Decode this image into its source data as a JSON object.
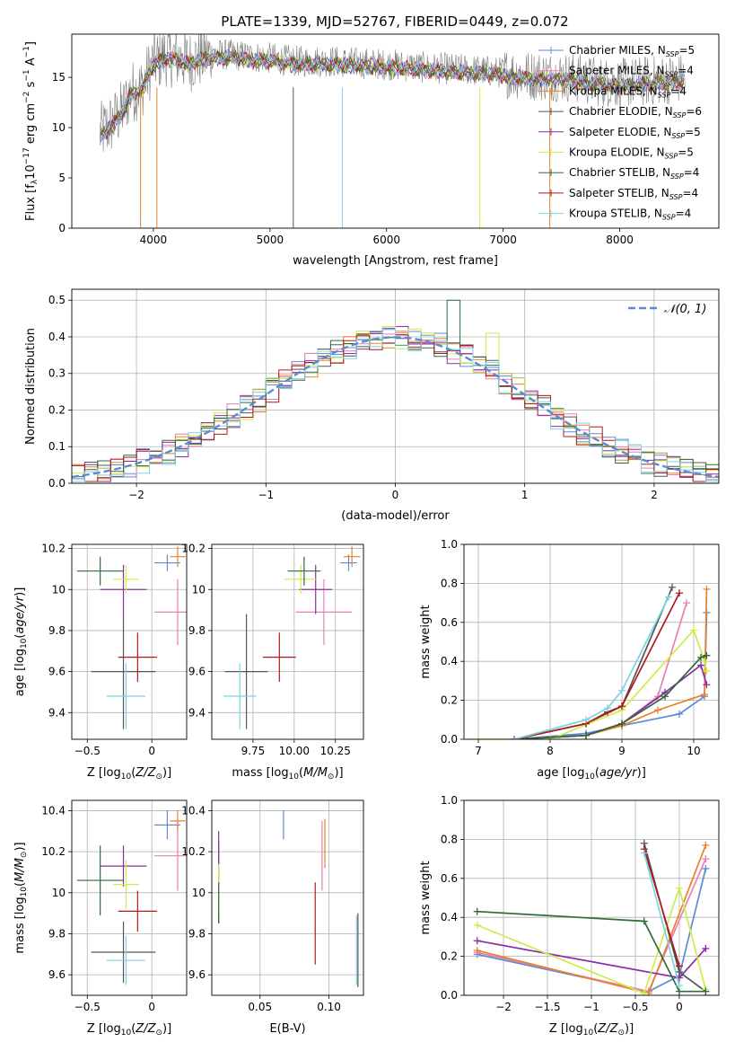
{
  "title": "PLATE=1339, MJD=52767, FIBERID=0449, z=0.072",
  "colors": {
    "cmiles": "#5b8bd6",
    "smiles": "#ea7fb2",
    "kmiles": "#e6822a",
    "celodie": "#555555",
    "selodie": "#8a2ba8",
    "kelodie": "#cfec4a",
    "cstelib": "#2f6b3a",
    "sstelib": "#b0191d",
    "kstelib": "#7ed3e0",
    "grey": "#808080"
  },
  "legend": {
    "spectrum": [
      {
        "key": "cmiles",
        "label": "Chabrier MILES, N_SSP=5"
      },
      {
        "key": "smiles",
        "label": "Salpeter MILES, N_SSP=4"
      },
      {
        "key": "kmiles",
        "label": "Kroupa MILES, N_SSP=4"
      },
      {
        "key": "celodie",
        "label": "Chabrier ELODIE, N_SSP=6"
      },
      {
        "key": "selodie",
        "label": "Salpeter ELODIE, N_SSP=5"
      },
      {
        "key": "kelodie",
        "label": "Kroupa ELODIE, N_SSP=5"
      },
      {
        "key": "cstelib",
        "label": "Chabrier STELIB, N_SSP=4"
      },
      {
        "key": "sstelib",
        "label": "Salpeter STELIB, N_SSP=4"
      },
      {
        "key": "kstelib",
        "label": "Kroupa STELIB, N_SSP=4"
      }
    ],
    "normal": "𝒩(0, 1)"
  },
  "chart_data": [
    {
      "id": "spectrum",
      "type": "line",
      "xlabel": "wavelength [Angstrom, rest frame]",
      "ylabel": "Flux [f_λ 10^-17 erg cm^-2 s^-1 A^-1]",
      "xlim": [
        3300,
        8850
      ],
      "ylim": [
        0,
        19.3
      ],
      "xticks": [
        4000,
        5000,
        6000,
        7000,
        8000
      ],
      "yticks": [
        0,
        5,
        10,
        15
      ],
      "grid": false,
      "legend_position": "right",
      "model_shape": {
        "x": [
          3550,
          3650,
          3750,
          3800,
          3900,
          4000,
          4100,
          4200,
          4300,
          4400,
          4500,
          4700,
          5000,
          5200,
          5500,
          5800,
          6000,
          6300,
          6600,
          6900,
          7200,
          7500,
          7800,
          8000,
          8300,
          8550
        ],
        "y": [
          9.5,
          10.5,
          12.0,
          13.5,
          14.0,
          16.5,
          17.2,
          17.0,
          16.6,
          17.0,
          17.3,
          17.2,
          16.9,
          16.6,
          16.6,
          16.4,
          16.3,
          16.0,
          15.8,
          15.6,
          15.2,
          15.1,
          14.6,
          14.4,
          14.7,
          14.9
        ]
      }
    },
    {
      "id": "residuals",
      "type": "line",
      "xlabel": "(data-model)/error",
      "ylabel": "Normed distribution",
      "xlim": [
        -2.5,
        2.5
      ],
      "ylim": [
        0,
        0.53
      ],
      "xticks": [
        -2,
        -1,
        0,
        1,
        2
      ],
      "yticks": [
        0.0,
        0.1,
        0.2,
        0.3,
        0.4,
        0.5
      ],
      "grid": true,
      "legend_position": "top-right",
      "histogram_spike": {
        "x": 0.45,
        "value": 0.5
      }
    },
    {
      "id": "z-age",
      "type": "scatter",
      "xlabel": "Z [log10(Z/Z_sun)]",
      "ylabel": "age [log10(age/yr)]",
      "xlim": [
        -0.62,
        0.27
      ],
      "ylim": [
        9.27,
        10.22
      ],
      "xticks": [
        -0.5,
        0.0
      ],
      "yticks": [
        9.4,
        9.6,
        9.8,
        10.0,
        10.2
      ],
      "grid": true,
      "points": [
        {
          "key": "cmiles",
          "x": 0.12,
          "y": 10.13,
          "xerr": 0.1,
          "yerr": 0.04
        },
        {
          "key": "smiles",
          "x": 0.2,
          "y": 9.89,
          "xerr": 0.18,
          "yerr": 0.16
        },
        {
          "key": "kmiles",
          "x": 0.2,
          "y": 10.16,
          "xerr": 0.06,
          "yerr": 0.05
        },
        {
          "key": "celodie",
          "x": -0.22,
          "y": 9.6,
          "xerr": 0.25,
          "yerr": 0.28
        },
        {
          "key": "selodie",
          "x": -0.22,
          "y": 10.0,
          "xerr": 0.18,
          "yerr": 0.12
        },
        {
          "key": "kelodie",
          "x": -0.2,
          "y": 10.05,
          "xerr": 0.1,
          "yerr": 0.07
        },
        {
          "key": "cstelib",
          "x": -0.4,
          "y": 10.09,
          "xerr": 0.18,
          "yerr": 0.07
        },
        {
          "key": "sstelib",
          "x": -0.11,
          "y": 9.67,
          "xerr": 0.15,
          "yerr": 0.12
        },
        {
          "key": "kstelib",
          "x": -0.2,
          "y": 9.48,
          "xerr": 0.15,
          "yerr": 0.16
        }
      ]
    },
    {
      "id": "mass-age",
      "type": "scatter",
      "xlabel": "mass [log10(M/M_sun)]",
      "ylabel": "",
      "xlim": [
        9.5,
        10.42
      ],
      "ylim": [
        9.27,
        10.22
      ],
      "xticks": [
        9.75,
        10.0,
        10.25
      ],
      "xticklabels": [
        "9.75",
        "10.00",
        "10.25"
      ],
      "yticks": [
        9.4,
        9.6,
        9.8,
        10.0,
        10.2
      ],
      "grid": true,
      "points": [
        {
          "key": "cmiles",
          "x": 10.33,
          "y": 10.13,
          "xerr": 0.05,
          "yerr": 0.04
        },
        {
          "key": "smiles",
          "x": 10.18,
          "y": 9.89,
          "xerr": 0.17,
          "yerr": 0.16
        },
        {
          "key": "kmiles",
          "x": 10.35,
          "y": 10.16,
          "xerr": 0.05,
          "yerr": 0.05
        },
        {
          "key": "celodie",
          "x": 9.71,
          "y": 9.6,
          "xerr": 0.13,
          "yerr": 0.28
        },
        {
          "key": "selodie",
          "x": 10.13,
          "y": 10.0,
          "xerr": 0.1,
          "yerr": 0.12
        },
        {
          "key": "kelodie",
          "x": 10.04,
          "y": 10.05,
          "xerr": 0.1,
          "yerr": 0.07
        },
        {
          "key": "cstelib",
          "x": 10.06,
          "y": 10.09,
          "xerr": 0.1,
          "yerr": 0.07
        },
        {
          "key": "sstelib",
          "x": 9.91,
          "y": 9.67,
          "xerr": 0.1,
          "yerr": 0.12
        },
        {
          "key": "kstelib",
          "x": 9.67,
          "y": 9.48,
          "xerr": 0.1,
          "yerr": 0.16
        }
      ]
    },
    {
      "id": "age-weight",
      "type": "line",
      "xlabel": "age [log10(age/yr)]",
      "ylabel": "mass weight",
      "xlim": [
        6.8,
        10.35
      ],
      "ylim": [
        0,
        1.0
      ],
      "xticks": [
        7,
        8,
        9,
        10
      ],
      "yticks": [
        0.0,
        0.2,
        0.4,
        0.6,
        0.8,
        1.0
      ],
      "grid": true,
      "series": [
        {
          "key": "cmiles",
          "x": [
            7.5,
            8.5,
            9.0,
            9.8,
            10.15,
            10.18
          ],
          "y": [
            0.0,
            0.03,
            0.07,
            0.13,
            0.22,
            0.65
          ]
        },
        {
          "key": "smiles",
          "x": [
            7.5,
            8.5,
            9.0,
            9.5,
            9.9
          ],
          "y": [
            0.0,
            0.02,
            0.08,
            0.22,
            0.7
          ]
        },
        {
          "key": "kmiles",
          "x": [
            7.5,
            8.5,
            9.0,
            9.5,
            10.15,
            10.18
          ],
          "y": [
            0.0,
            0.02,
            0.07,
            0.15,
            0.23,
            0.77
          ]
        },
        {
          "key": "celodie",
          "x": [
            7.5,
            8.5,
            9.0,
            9.7
          ],
          "y": [
            0.0,
            0.08,
            0.17,
            0.78
          ]
        },
        {
          "key": "selodie",
          "x": [
            7.5,
            8.5,
            9.0,
            9.6,
            10.1,
            10.18
          ],
          "y": [
            0.0,
            0.02,
            0.08,
            0.24,
            0.38,
            0.28
          ]
        },
        {
          "key": "kelodie",
          "x": [
            7.0,
            8.0,
            9.0,
            10.0,
            10.15,
            10.18
          ],
          "y": [
            0.0,
            0.0,
            0.15,
            0.56,
            0.4,
            0.35
          ]
        },
        {
          "key": "cstelib",
          "x": [
            7.5,
            8.5,
            9.0,
            9.6,
            10.1,
            10.18
          ],
          "y": [
            0.0,
            0.02,
            0.08,
            0.22,
            0.42,
            0.43
          ]
        },
        {
          "key": "sstelib",
          "x": [
            7.5,
            8.5,
            8.8,
            9.0,
            9.8
          ],
          "y": [
            0.0,
            0.08,
            0.14,
            0.17,
            0.75
          ]
        },
        {
          "key": "kstelib",
          "x": [
            7.5,
            8.5,
            8.8,
            9.0,
            9.65
          ],
          "y": [
            0.0,
            0.1,
            0.16,
            0.25,
            0.73
          ]
        }
      ]
    },
    {
      "id": "z-mass",
      "type": "scatter",
      "xlabel": "Z [log10(Z/Z_sun)]",
      "ylabel": "mass [log10(M/M_sun)]",
      "xlim": [
        -0.62,
        0.27
      ],
      "ylim": [
        9.5,
        10.45
      ],
      "xticks": [
        -0.5,
        0.0
      ],
      "yticks": [
        9.6,
        9.8,
        10.0,
        10.2,
        10.4
      ],
      "grid": true,
      "points": [
        {
          "key": "cmiles",
          "x": 0.12,
          "y": 10.33,
          "xerr": 0.1,
          "yerr": 0.07
        },
        {
          "key": "smiles",
          "x": 0.2,
          "y": 10.18,
          "xerr": 0.18,
          "yerr": 0.17
        },
        {
          "key": "kmiles",
          "x": 0.2,
          "y": 10.35,
          "xerr": 0.06,
          "yerr": 0.05
        },
        {
          "key": "celodie",
          "x": -0.22,
          "y": 9.71,
          "xerr": 0.25,
          "yerr": 0.15
        },
        {
          "key": "selodie",
          "x": -0.22,
          "y": 10.13,
          "xerr": 0.18,
          "yerr": 0.1
        },
        {
          "key": "kelodie",
          "x": -0.2,
          "y": 10.04,
          "xerr": 0.1,
          "yerr": 0.12
        },
        {
          "key": "cstelib",
          "x": -0.4,
          "y": 10.06,
          "xerr": 0.18,
          "yerr": 0.17
        },
        {
          "key": "sstelib",
          "x": -0.11,
          "y": 9.91,
          "xerr": 0.15,
          "yerr": 0.1
        },
        {
          "key": "kstelib",
          "x": -0.2,
          "y": 9.67,
          "xerr": 0.15,
          "yerr": 0.12
        }
      ]
    },
    {
      "id": "ebv-mass",
      "type": "scatter",
      "xlabel": "E(B-V)",
      "ylabel": "",
      "xlim": [
        0.015,
        0.125
      ],
      "ylim": [
        9.5,
        10.45
      ],
      "xticks": [
        0.05,
        0.1
      ],
      "xticklabels": [
        "0.05",
        "0.10"
      ],
      "yticks": [
        9.6,
        9.8,
        10.0,
        10.2,
        10.4
      ],
      "grid": true,
      "points": [
        {
          "key": "cmiles",
          "x": 0.067,
          "y": 10.33,
          "yerr": 0.07
        },
        {
          "key": "smiles",
          "x": 0.095,
          "y": 10.18,
          "yerr": 0.17
        },
        {
          "key": "kmiles",
          "x": 0.097,
          "y": 10.24,
          "yerr": 0.12
        },
        {
          "key": "celodie",
          "x": 0.02,
          "y": 10.05,
          "yerr": 0.2
        },
        {
          "key": "selodie",
          "x": 0.02,
          "y": 10.22,
          "yerr": 0.08
        },
        {
          "key": "kelodie",
          "x": 0.02,
          "y": 10.02,
          "yerr": 0.12
        },
        {
          "key": "cstelib",
          "x": 0.02,
          "y": 9.95,
          "yerr": 0.1
        },
        {
          "key": "sstelib",
          "x": 0.09,
          "y": 9.85,
          "yerr": 0.2
        },
        {
          "key": "kstelib",
          "x": 0.12,
          "y": 9.72,
          "yerr": 0.17
        },
        {
          "key": "celodie",
          "x": 0.121,
          "y": 9.72,
          "yerr": 0.18
        }
      ]
    },
    {
      "id": "z-weight",
      "type": "line",
      "xlabel": "Z [log10(Z/Z_sun)]",
      "ylabel": "mass weight",
      "xlim": [
        -2.45,
        0.45
      ],
      "ylim": [
        0,
        1.0
      ],
      "xticks": [
        -2.0,
        -1.5,
        -1.0,
        -0.5,
        0.0
      ],
      "yticks": [
        0.0,
        0.2,
        0.4,
        0.6,
        0.8,
        1.0
      ],
      "grid": true,
      "series": [
        {
          "key": "cmiles",
          "x": [
            -2.3,
            -0.35,
            0.0,
            0.3
          ],
          "y": [
            0.21,
            0.02,
            0.1,
            0.65
          ]
        },
        {
          "key": "smiles",
          "x": [
            -2.3,
            -0.35,
            0.3
          ],
          "y": [
            0.22,
            0.02,
            0.7
          ]
        },
        {
          "key": "kmiles",
          "x": [
            -2.3,
            -0.35,
            0.3
          ],
          "y": [
            0.23,
            0.01,
            0.77
          ]
        },
        {
          "key": "celodie",
          "x": [
            -0.4,
            0.0,
            0.3
          ],
          "y": [
            0.78,
            0.12,
            0.02
          ]
        },
        {
          "key": "selodie",
          "x": [
            -2.3,
            0.0,
            0.3
          ],
          "y": [
            0.28,
            0.09,
            0.24
          ]
        },
        {
          "key": "kelodie",
          "x": [
            -2.3,
            -0.4,
            0.0,
            0.3
          ],
          "y": [
            0.36,
            0.01,
            0.55,
            0.03
          ]
        },
        {
          "key": "cstelib",
          "x": [
            -2.3,
            -0.4,
            0.0,
            0.3
          ],
          "y": [
            0.43,
            0.38,
            0.02,
            0.02
          ]
        },
        {
          "key": "sstelib",
          "x": [
            -0.4,
            0.0
          ],
          "y": [
            0.75,
            0.15
          ]
        },
        {
          "key": "kstelib",
          "x": [
            -0.4,
            0.0
          ],
          "y": [
            0.73,
            0.05
          ]
        }
      ]
    }
  ]
}
